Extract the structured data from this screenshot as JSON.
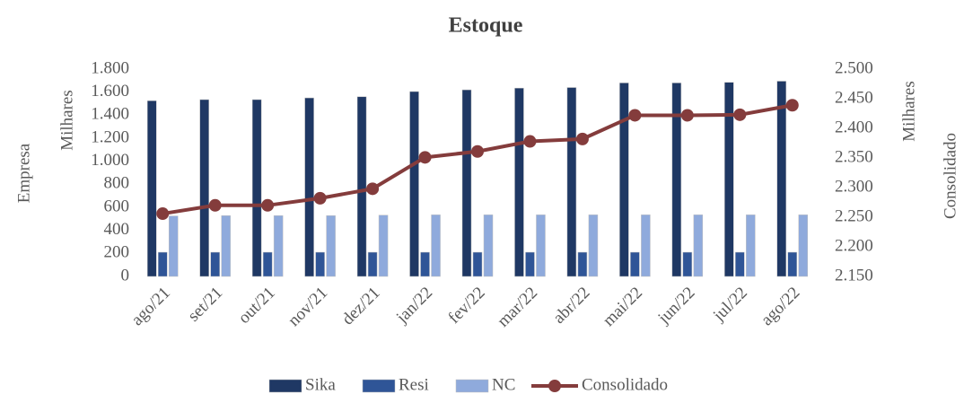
{
  "chart_data": {
    "type": "bar",
    "title": "Estoque",
    "ylabel": "Empresa",
    "yunit": "Milhares",
    "y2label": "Consolidado",
    "y2unit": "Milhares",
    "categories": [
      "ago/21",
      "set/21",
      "out/21",
      "nov/21",
      "dez/21",
      "jan/22",
      "fev/22",
      "mar/22",
      "abr/22",
      "mai/22",
      "jun/22",
      "jul/22",
      "ago/22"
    ],
    "series": [
      {
        "name": "Sika",
        "color": "#1f3864",
        "values": [
          1525,
          1535,
          1535,
          1550,
          1560,
          1605,
          1620,
          1635,
          1640,
          1680,
          1680,
          1685,
          1695
        ]
      },
      {
        "name": "Resi",
        "color": "#2f5597",
        "values": [
          210,
          210,
          210,
          210,
          210,
          210,
          210,
          210,
          210,
          210,
          210,
          210,
          210
        ]
      },
      {
        "name": "NC",
        "color": "#8faadc",
        "values": [
          525,
          528,
          528,
          528,
          532,
          535,
          535,
          535,
          535,
          535,
          535,
          535,
          535
        ]
      },
      {
        "name": "Consolidado",
        "color": "#843c3c",
        "type": "line",
        "axis": "y2",
        "values": [
          2256,
          2270,
          2270,
          2282,
          2298,
          2351,
          2361,
          2378,
          2382,
          2422,
          2422,
          2423,
          2439
        ]
      }
    ],
    "ylim": [
      0,
      1800
    ],
    "yticks": [
      0,
      200,
      400,
      600,
      800,
      {
        "value": 1000,
        "label": "1.000"
      },
      {
        "value": 1200,
        "label": "1.200"
      },
      {
        "value": 1400,
        "label": "1.400"
      },
      {
        "value": 1600,
        "label": "1.600"
      },
      {
        "value": 1800,
        "label": "1.800"
      }
    ],
    "y2lim": [
      2150,
      2500
    ],
    "y2ticks": [
      {
        "value": 2150,
        "label": "2.150"
      },
      {
        "value": 2200,
        "label": "2.200"
      },
      {
        "value": 2250,
        "label": "2.250"
      },
      {
        "value": 2300,
        "label": "2.300"
      },
      {
        "value": 2350,
        "label": "2.350"
      },
      {
        "value": 2400,
        "label": "2.400"
      },
      {
        "value": 2450,
        "label": "2.450"
      },
      {
        "value": 2500,
        "label": "2.500"
      }
    ],
    "grid": false,
    "legend": "bottom"
  }
}
